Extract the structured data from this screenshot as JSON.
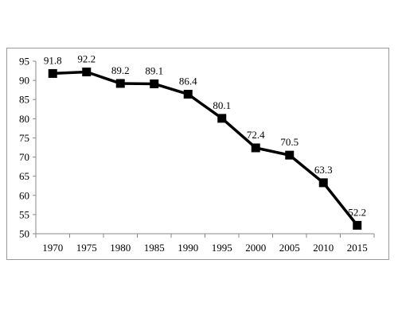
{
  "chart_data": {
    "type": "line",
    "title": "",
    "xlabel": "",
    "ylabel": "",
    "x": [
      "1970",
      "1975",
      "1980",
      "1985",
      "1990",
      "1995",
      "2000",
      "2005",
      "2010",
      "2015"
    ],
    "series": [
      {
        "values": [
          91.8,
          92.2,
          89.2,
          89.1,
          86.4,
          80.1,
          72.4,
          70.5,
          63.3,
          52.2
        ],
        "labels": [
          "91.8",
          "92.2",
          "89.2",
          "89.1",
          "86.4",
          "80.1",
          "72.4",
          "70.5",
          "63.3",
          "52.2"
        ],
        "color": "#000000",
        "marker": "square"
      }
    ],
    "ylim": [
      50,
      95
    ],
    "yticks": [
      "50",
      "55",
      "60",
      "65",
      "70",
      "75",
      "80",
      "85",
      "90",
      "95"
    ],
    "grid": false,
    "legend": "none"
  }
}
